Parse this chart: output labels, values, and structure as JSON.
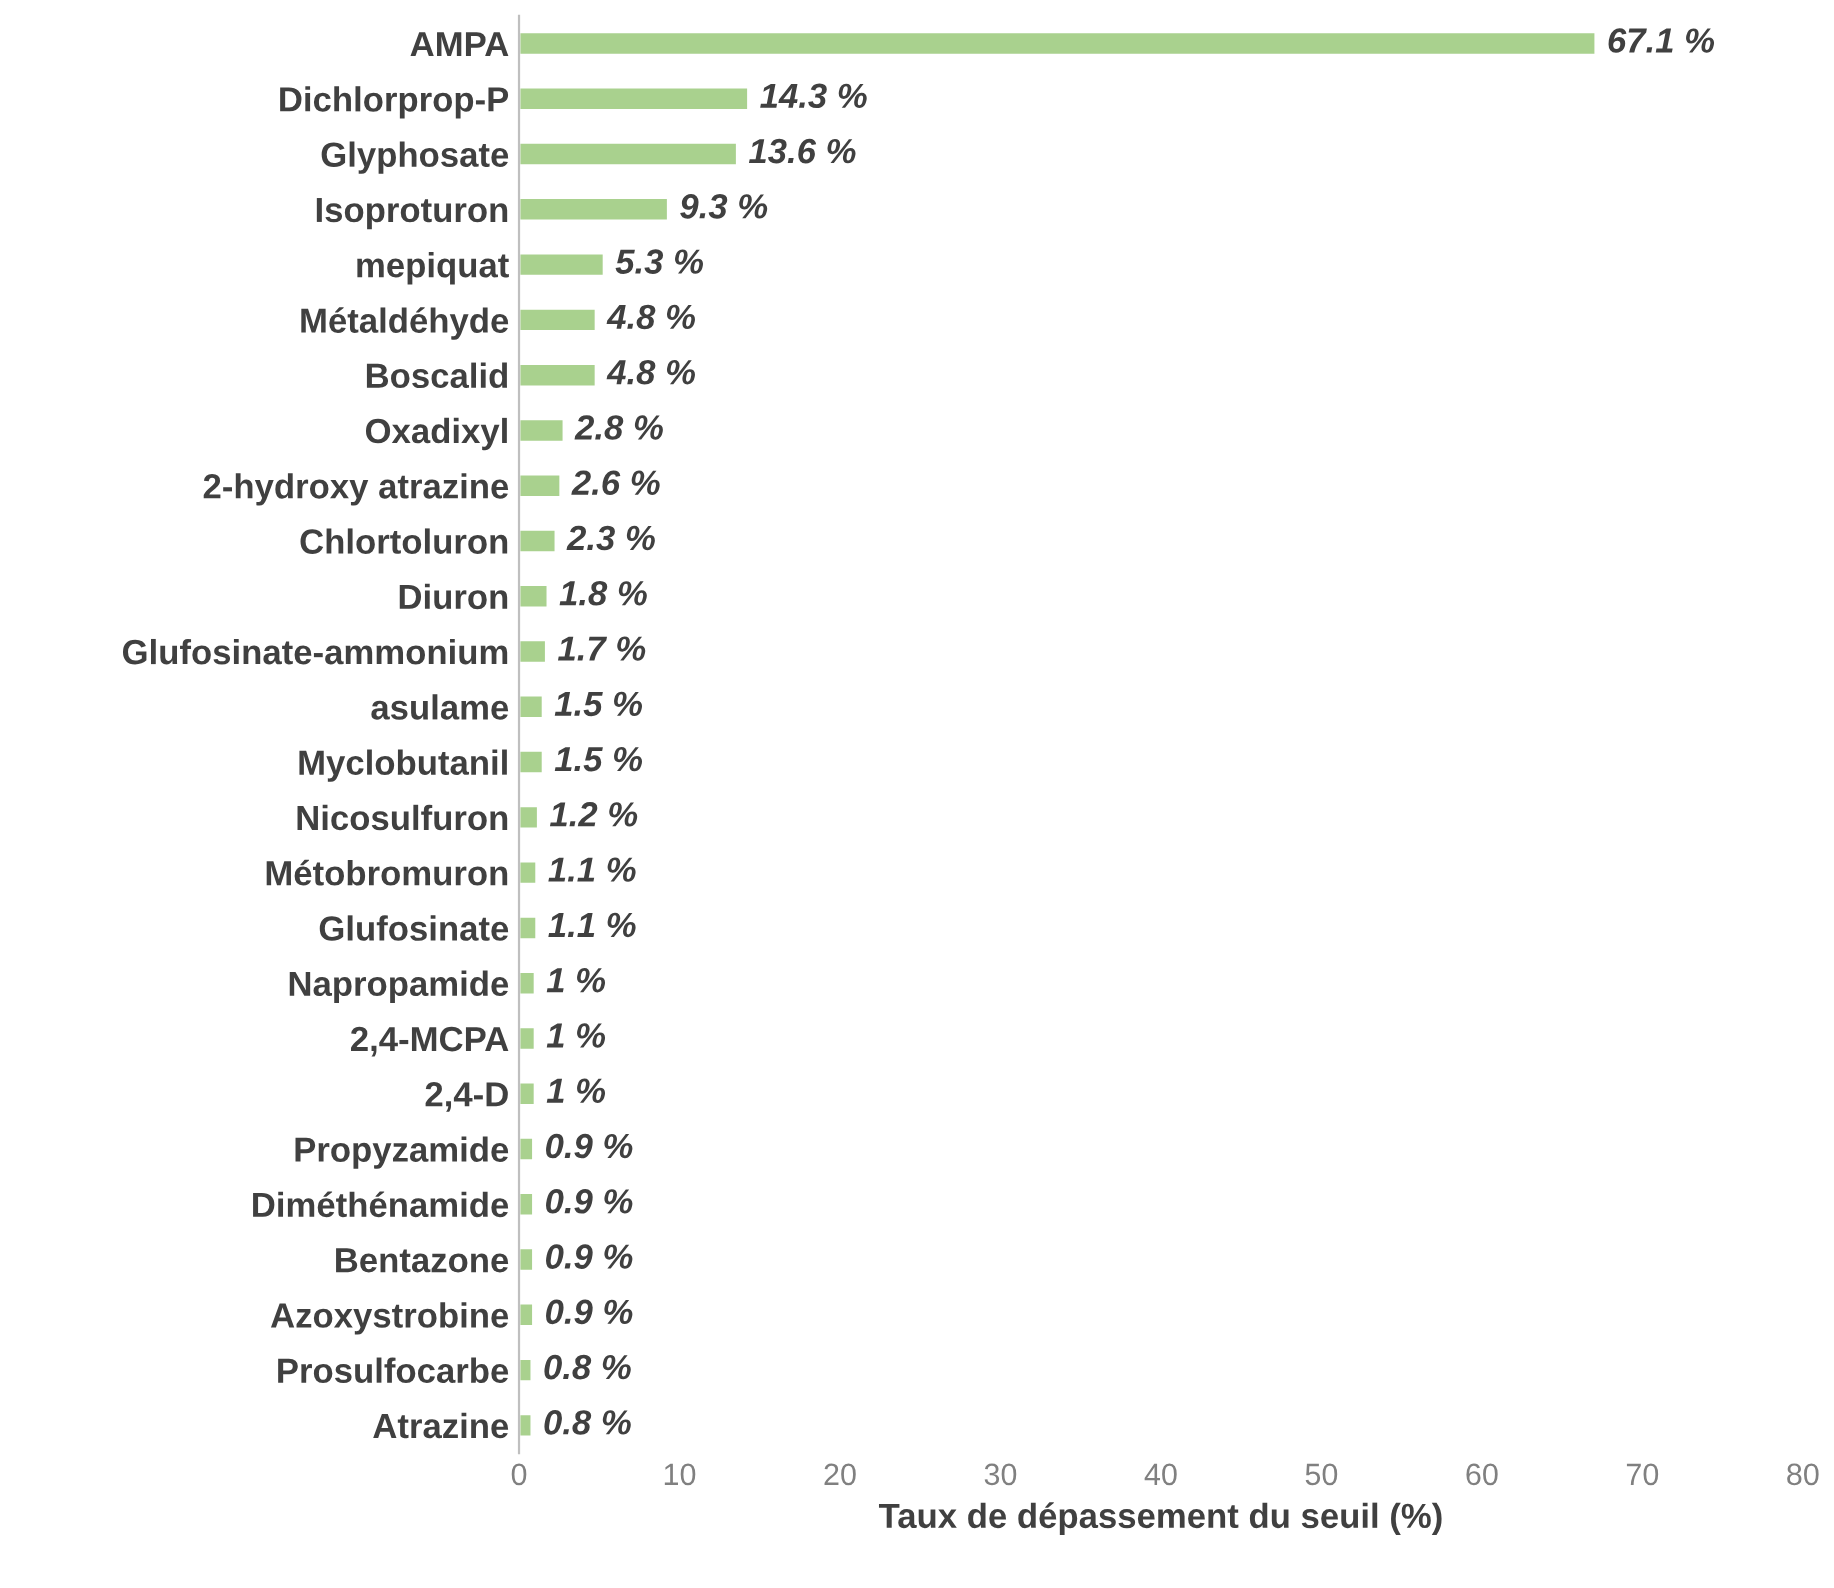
{
  "chart_data": {
    "type": "bar",
    "orientation": "horizontal",
    "xlabel": "Taux de dépassement du seuil (%)",
    "categories": [
      "AMPA",
      "Dichlorprop-P",
      "Glyphosate",
      "Isoproturon",
      "mepiquat",
      "Métaldéhyde",
      "Boscalid",
      "Oxadixyl",
      "2-hydroxy atrazine",
      "Chlortoluron",
      "Diuron",
      "Glufosinate-ammonium",
      "asulame",
      "Myclobutanil",
      "Nicosulfuron",
      "Métobromuron",
      "Glufosinate",
      "Napropamide",
      "2,4-MCPA",
      "2,4-D",
      "Propyzamide",
      "Diméthénamide",
      "Bentazone",
      "Azoxystrobine",
      "Prosulfocarbe",
      "Atrazine"
    ],
    "values": [
      67.1,
      14.3,
      13.6,
      9.3,
      5.3,
      4.8,
      4.8,
      2.8,
      2.6,
      2.3,
      1.8,
      1.7,
      1.5,
      1.5,
      1.2,
      1.1,
      1.1,
      1,
      1,
      1,
      0.9,
      0.9,
      0.9,
      0.9,
      0.8,
      0.8
    ],
    "value_labels": [
      "67.1 %",
      "14.3 %",
      "13.6 %",
      "9.3 %",
      "5.3 %",
      "4.8 %",
      "4.8 %",
      "2.8 %",
      "2.6 %",
      "2.3 %",
      "1.8 %",
      "1.7 %",
      "1.5 %",
      "1.5 %",
      "1.2 %",
      "1.1 %",
      "1.1 %",
      "1 %",
      "1 %",
      "1 %",
      "0.9 %",
      "0.9 %",
      "0.9 %",
      "0.9 %",
      "0.8 %",
      "0.8 %"
    ],
    "color": "#a9d18e",
    "xlim": [
      0,
      80
    ],
    "xticks": [
      0,
      10,
      20,
      30,
      40,
      50,
      60,
      70,
      80
    ],
    "grid": false,
    "legend": false
  }
}
